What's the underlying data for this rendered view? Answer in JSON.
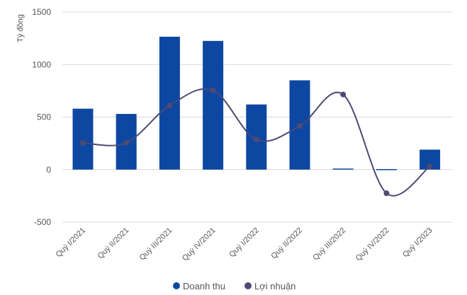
{
  "chart_data": {
    "type": "bar",
    "categories": [
      "Quý I/2021",
      "Quý II/2021",
      "Quý III/2021",
      "Quý IV/2021",
      "Quý I/2022",
      "Quý II/2022",
      "Quý III/2022",
      "Quý IV/2022",
      "Quý I/2023"
    ],
    "series": [
      {
        "name": "Doanh thu",
        "type": "bar",
        "color": "#0d47a1",
        "values": [
          580,
          530,
          1265,
          1225,
          620,
          850,
          10,
          5,
          190
        ]
      },
      {
        "name": "Lợi nhuận",
        "type": "line",
        "color": "#4d4a73",
        "values": [
          255,
          255,
          610,
          755,
          285,
          415,
          715,
          -225,
          30
        ]
      }
    ],
    "ylabel": "Tỷ đồng",
    "ylim": [
      -500,
      1500
    ],
    "yticks": [
      -500,
      0,
      500,
      1000,
      1500
    ],
    "grid": true,
    "legend_position": "bottom-center"
  }
}
